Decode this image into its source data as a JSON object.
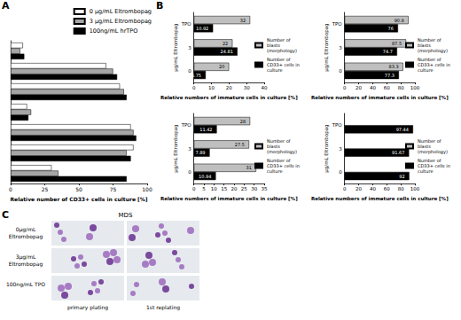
{
  "panel_labels": [
    "A",
    "B",
    "C"
  ],
  "chart_data": [
    {
      "type": "bar",
      "orientation": "horizontal",
      "categories": [
        null,
        null,
        null,
        null,
        null,
        null,
        null
      ],
      "series": [
        {
          "name": "0 µg/mL Eltrombopag",
          "color": "#ffffff",
          "values": [
            9,
            70,
            80,
            12,
            88,
            90,
            30
          ]
        },
        {
          "name": "3 µg/mL Eltrombopag",
          "color": "#a6a6a6",
          "values": [
            7,
            75,
            83,
            15,
            90,
            85,
            35
          ]
        },
        {
          "name": "100ng/mL hrTPO",
          "color": "#000000",
          "values": [
            10,
            78,
            85,
            13,
            92,
            88,
            85
          ]
        }
      ],
      "xlabel": "Relative number of CD33+ cells in culture [%]",
      "xlim": [
        0,
        100
      ],
      "xticks": [
        0,
        25,
        50,
        75,
        100
      ],
      "legend": "upper right",
      "grid": false
    },
    {
      "type": "bar",
      "orientation": "horizontal",
      "categories": [
        "TPO",
        "3",
        "0"
      ],
      "ylabel": "µg/mL Eltrombopag",
      "xlabel": "Relative numbers of immature cells in culture [%]",
      "series": [
        {
          "name": "Number of blasts (morphology)",
          "color": "#bfbfbf",
          "values": [
            32,
            22,
            20
          ]
        },
        {
          "name": "Number of CD33+ cells in culture",
          "color": "#000000",
          "values": [
            10.92,
            24.81,
            6.75
          ]
        }
      ],
      "data_labels": true,
      "xlim": [
        0,
        40
      ],
      "xticks": [
        0,
        10,
        20,
        30,
        40
      ],
      "legend": "right",
      "grid": false
    },
    {
      "type": "bar",
      "orientation": "horizontal",
      "categories": [
        "TPO",
        "3",
        "0"
      ],
      "ylabel": "µg/mL Eltrombopag",
      "xlabel": "Relative numbers of immature cells in culture [%]",
      "series": [
        {
          "name": "Number of blasts (morphology)",
          "color": "#bfbfbf",
          "values": [
            90.9,
            87.5,
            83.3
          ]
        },
        {
          "name": "Number of CD33+ cells in culture",
          "color": "#000000",
          "values": [
            76,
            74.7,
            77.3
          ]
        }
      ],
      "data_labels": true,
      "xlim": [
        0,
        100
      ],
      "xticks": [
        0,
        20,
        40,
        60,
        80,
        100
      ],
      "legend": "right",
      "grid": false
    },
    {
      "type": "bar",
      "orientation": "horizontal",
      "categories": [
        "TPO",
        "3",
        "0"
      ],
      "ylabel": "µg/mL Eltrombopag",
      "xlabel": "Relative numbers of immature cells in culture [%]",
      "series": [
        {
          "name": "Number of blasts (morphology)",
          "color": "#bfbfbf",
          "values": [
            28,
            27.5,
            31
          ]
        },
        {
          "name": "Number of CD33+ cells in culture",
          "color": "#000000",
          "values": [
            11.42,
            7.89,
            10.94
          ]
        }
      ],
      "data_labels": true,
      "xlim": [
        0,
        35
      ],
      "xticks": [
        0,
        5,
        10,
        15,
        20,
        25,
        30,
        35
      ],
      "legend": "right",
      "grid": false
    },
    {
      "type": "bar",
      "orientation": "horizontal",
      "categories": [
        "TPO",
        "3",
        "0"
      ],
      "ylabel": "µg/mL Eltrombopag",
      "xlabel": "Relative numbers of immature cells in culture [%]",
      "series": [
        {
          "name": "Number of blasts (morphology)",
          "color": "#bfbfbf",
          "values": [
            null,
            null,
            null
          ]
        },
        {
          "name": "Number of CD33+ cells in culture",
          "color": "#000000",
          "values": [
            97.44,
            91.67,
            92
          ]
        }
      ],
      "data_labels": true,
      "xlim": [
        0,
        100
      ],
      "xticks": [
        0,
        20,
        40,
        60,
        80,
        100
      ],
      "legend": "right",
      "grid": false
    }
  ],
  "panel_c": {
    "title": "MDS",
    "rows": [
      "0µg/mL Eltrombopag",
      "3µg/mL Eltrombopag",
      "100ng/mL TPO"
    ],
    "columns": [
      "primary plating",
      "1st replating"
    ]
  }
}
